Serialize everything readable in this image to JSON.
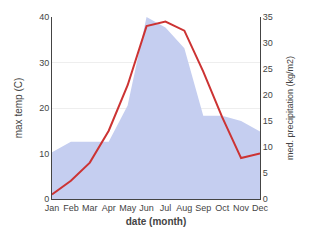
{
  "chart_data": {
    "type": "line",
    "xlabel": "date (month)",
    "ylabel": "max temp (C)",
    "y2label": "med. precipitation (kg/m2)",
    "categories": [
      "Jan",
      "Feb",
      "Mar",
      "Apr",
      "May",
      "Jun",
      "Jul",
      "Aug",
      "Sep",
      "Oct",
      "Nov",
      "Dec"
    ],
    "series": [
      {
        "type": "area",
        "color": "#c5cef0",
        "axis": "y2",
        "values": [
          9,
          11,
          11,
          11,
          18,
          35,
          33,
          29,
          16,
          16,
          15,
          13
        ]
      },
      {
        "type": "line",
        "color": "#cc3333",
        "values": [
          1,
          4,
          8,
          15,
          25,
          38,
          39,
          37,
          28,
          18,
          9,
          10
        ]
      }
    ],
    "ylim": [
      0,
      40
    ],
    "yticks": [
      0,
      10,
      20,
      30,
      40
    ],
    "y2lim": [
      0,
      35
    ],
    "y2ticks": [
      0,
      5,
      10,
      15,
      20,
      25,
      30,
      35
    ],
    "grid": true
  }
}
